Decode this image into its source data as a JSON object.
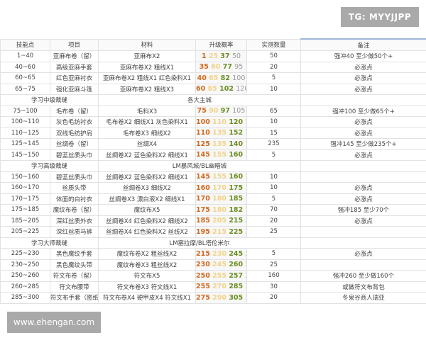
{
  "watermark_top": "TG: MYYJJPP",
  "watermark_bottom": "www.ehengan.com",
  "colors": {
    "rate_1": "#d2691e",
    "rate_2": "#f1d38a",
    "rate_3": "#6b8e23",
    "rate_4": "#9a9a9a"
  },
  "table": {
    "headers": [
      "技能点",
      "项目",
      "材料",
      "升级概率",
      "实测数量",
      "备注"
    ],
    "rows": [
      {
        "type": "item",
        "skill": "1~40",
        "item": "亚麻布卷（留）",
        "materials": "亚麻布X2",
        "rates": [
          "1",
          "25",
          "37",
          "50"
        ],
        "count": "50",
        "note": "强冲40 至少做50个+"
      },
      {
        "type": "item",
        "skill": "40~60",
        "item": "高级亚麻手套",
        "materials": "亚麻布卷X2 粗线X1",
        "rates": [
          "35",
          "60",
          "77",
          "95"
        ],
        "count": "20",
        "note": "必涨点"
      },
      {
        "type": "item",
        "skill": "60~65",
        "item": "红色亚麻衬衣",
        "materials": "亚麻布卷X2 粗线X1 红色染料X1",
        "rates": [
          "40",
          "65",
          "82",
          "100"
        ],
        "count": "5",
        "note": "必涨点"
      },
      {
        "type": "item",
        "skill": "65~75",
        "item": "强化亚麻斗篷",
        "materials": "亚麻布卷X2 粗线X3",
        "rates": [
          "60",
          "85",
          "102",
          "120"
        ],
        "count": "10",
        "note": "必涨点"
      },
      {
        "type": "section",
        "title": "学习中级裁缝",
        "location": "各大主城"
      },
      {
        "type": "item",
        "skill": "75~100",
        "item": "毛布卷（留）",
        "materials": "毛料X3",
        "rates": [
          "75",
          "90",
          "97",
          "105"
        ],
        "count": "65",
        "note": "强冲100 至少做65个+"
      },
      {
        "type": "item",
        "skill": "100~110",
        "item": "灰色毛纺衬衣",
        "materials": "毛布卷X2 细线X1 灰色染料X1",
        "rates": [
          "100",
          "110",
          "120",
          "130"
        ],
        "count": "10",
        "note": "必涨点"
      },
      {
        "type": "item",
        "skill": "110~125",
        "item": "双线毛纺护肩",
        "materials": "毛布卷X3 细线X2",
        "rates": [
          "110",
          "135",
          "152",
          "170"
        ],
        "count": "15",
        "note": "必涨点"
      },
      {
        "type": "item",
        "skill": "125~145",
        "item": "丝绸卷（留）",
        "materials": "丝绸X4",
        "rates": [
          "125",
          "135",
          "140",
          "145"
        ],
        "count": "235",
        "note": "强冲145 至少做235个+"
      },
      {
        "type": "item",
        "skill": "145~150",
        "item": "碧蓝丝质头巾",
        "materials": "丝绸卷X2 蓝色染料X2 细线X1",
        "rates": [
          "145",
          "155",
          "160",
          "165"
        ],
        "count": "5",
        "note": "必涨点"
      },
      {
        "type": "section",
        "title": "学习高级裁缝",
        "location": "LM暴风城/BL幽暗城"
      },
      {
        "type": "item",
        "skill": "150~160",
        "item": "碧蓝丝质头巾",
        "materials": "丝绸卷X2 蓝色染料X2 细线X1",
        "rates": [
          "145",
          "155",
          "160",
          "165"
        ],
        "count": "10",
        "note": ""
      },
      {
        "type": "item",
        "skill": "160~170",
        "item": "丝质头带",
        "materials": "丝绸卷X3 细线X2",
        "rates": [
          "160",
          "170",
          "175",
          "180"
        ],
        "count": "10",
        "note": "必涨点"
      },
      {
        "type": "item",
        "skill": "170~175",
        "item": "体面的白衬衣",
        "materials": "丝绸卷X3 漂白液X2 细线X1",
        "rates": [
          "170",
          "180",
          "185",
          "190"
        ],
        "count": "5",
        "note": "必涨点"
      },
      {
        "type": "item",
        "skill": "175~185",
        "item": "魔纹布卷（留）",
        "materials": "魔纹布X5",
        "rates": [
          "175",
          "180",
          "182",
          "185"
        ],
        "count": "70",
        "note": "强冲185 至少70个"
      },
      {
        "type": "item",
        "skill": "185~205",
        "item": "深红丝质外衣",
        "materials": "丝绸卷X4 红色染料X2 细线X2",
        "rates": [
          "185",
          "205",
          "215",
          "225"
        ],
        "count": "20",
        "note": "必涨点"
      },
      {
        "type": "item",
        "skill": "205~225",
        "item": "深红丝质马裤",
        "materials": "丝绸卷X4 红色染料X2 丝线X2",
        "rates": [
          "195",
          "215",
          "225",
          "235"
        ],
        "count": "25",
        "note": ""
      },
      {
        "type": "section",
        "title": "学习大师裁缝",
        "location": "LM塞拉摩/BL塔伦米尔"
      },
      {
        "type": "item",
        "skill": "225~230",
        "item": "黑色魔纹手套",
        "materials": "魔纹布卷X2 粗丝线X2",
        "rates": [
          "215",
          "230",
          "245",
          "260"
        ],
        "count": "5",
        "note": "必涨点"
      },
      {
        "type": "item",
        "skill": "230~250",
        "item": "黑色魔纹头带",
        "materials": "魔纹布卷X3 粗丝线X2",
        "rates": [
          "230",
          "245",
          "260",
          "275"
        ],
        "count": "25",
        "note": ""
      },
      {
        "type": "item",
        "skill": "250~260",
        "item": "符文布卷（留）",
        "materials": "符文布X5",
        "rates": [
          "250",
          "255",
          "257",
          "260"
        ],
        "count": "160",
        "note": "强冲260 至少做160个"
      },
      {
        "type": "item",
        "skill": "260~285",
        "item": "符文布腰带",
        "materials": "符文布卷X3 符文线X1",
        "rates": [
          "255",
          "270",
          "285",
          "300"
        ],
        "count": "30",
        "note": "或做符文布背包"
      },
      {
        "type": "item",
        "skill": "285~300",
        "item": "符文布手套（图纸）",
        "materials": "符文布卷X4 硬甲皮X4 符文线X1",
        "rates": [
          "275",
          "290",
          "305",
          "320"
        ],
        "count": "20",
        "note": "冬泉谷商人瑞亚"
      }
    ]
  }
}
